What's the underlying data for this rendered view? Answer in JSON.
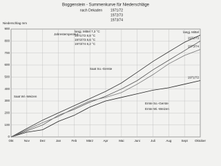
{
  "chart_data": {
    "type": "line",
    "title": "Boggenstein - Summenkurve für Niederschläge",
    "subtitle": "nach Dekaden",
    "years": [
      "1971/72",
      "1972/73",
      "1973/74"
    ],
    "y_label": "Niederschlag mm",
    "categories": [
      "Okt",
      "Nov",
      "Dez",
      "Jan",
      "Feb",
      "März",
      "Apr",
      "Mai",
      "Juni",
      "Juli",
      "Aug",
      "Sept",
      "Oktober"
    ],
    "ylim": [
      0,
      900
    ],
    "yticks": [
      0,
      100,
      200,
      300,
      400,
      500,
      600,
      700,
      800,
      900
    ],
    "grid": true,
    "series": [
      {
        "name": "langj. Mittel",
        "color": "#333333",
        "values": [
          0,
          70,
          140,
          200,
          260,
          320,
          380,
          450,
          540,
          630,
          710,
          790,
          850
        ]
      },
      {
        "name": "1971/72",
        "color": "#222222",
        "values": [
          0,
          40,
          60,
          130,
          180,
          250,
          300,
          330,
          360,
          390,
          410,
          440,
          470
        ]
      },
      {
        "name": "1972/73",
        "color": "#555555",
        "values": [
          0,
          50,
          100,
          180,
          230,
          290,
          340,
          400,
          470,
          560,
          640,
          720,
          800
        ]
      },
      {
        "name": "1973/74",
        "color": "#777777",
        "values": [
          0,
          60,
          120,
          170,
          240,
          300,
          330,
          370,
          440,
          520,
          610,
          680,
          730
        ]
      }
    ],
    "annotations": [
      "Jahrestemperatur",
      "langj. Mittel 7,3 °C",
      "1971/72 8,8 °C",
      "1972/73 8,6 °C",
      "1973/74 8,2 °C",
      "Saat Wi.-Weizen",
      "Saat So.-Gerste",
      "Ernte So.-Gerste",
      "Ernte Wi.-Weizen"
    ]
  }
}
